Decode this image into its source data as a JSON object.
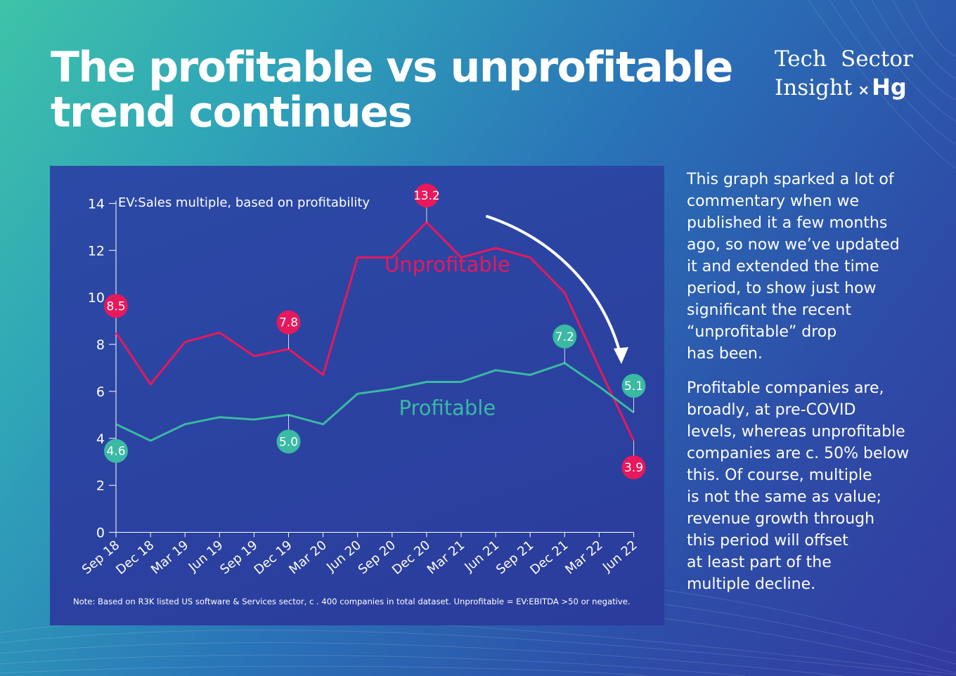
{
  "headline": {
    "line1": "The profitable vs unprofitable",
    "line2": "trend continues"
  },
  "brand": {
    "word1": "Tech",
    "word2": "Sector",
    "word3": "Insight",
    "mark": "×",
    "logo": "Hg"
  },
  "chart_data": {
    "type": "line",
    "title": "EV:Sales multiple, based on profitability",
    "xlabel": "",
    "ylabel": "",
    "ylim": [
      0,
      14
    ],
    "yticks": [
      0,
      2,
      4,
      6,
      8,
      10,
      12,
      14
    ],
    "categories": [
      "Sep 18",
      "Dec 18",
      "Mar 19",
      "Jun 19",
      "Sep 19",
      "Dec 19",
      "Mar 20",
      "Jun 20",
      "Sep 20",
      "Dec 20",
      "Mar 21",
      "Jun 21",
      "Sep 21",
      "Dec 21",
      "Mar 22",
      "Jun 22"
    ],
    "series": [
      {
        "name": "Unprofitable",
        "color": "#e8185c",
        "values": [
          8.5,
          6.3,
          8.1,
          8.5,
          7.5,
          7.8,
          6.7,
          11.7,
          11.7,
          13.2,
          11.7,
          12.1,
          11.7,
          10.2,
          7.0,
          3.9
        ],
        "labels": [
          {
            "index": 0,
            "text": "8.5"
          },
          {
            "index": 5,
            "text": "7.8"
          },
          {
            "index": 9,
            "text": "13.2"
          },
          {
            "index": 15,
            "text": "3.9"
          }
        ]
      },
      {
        "name": "Profitable",
        "color": "#3ab9a3",
        "values": [
          4.6,
          3.9,
          4.6,
          4.9,
          4.8,
          5.0,
          4.6,
          5.9,
          6.1,
          6.4,
          6.4,
          6.9,
          6.7,
          7.2,
          6.2,
          5.1
        ],
        "labels": [
          {
            "index": 0,
            "text": "4.6"
          },
          {
            "index": 5,
            "text": "5.0"
          },
          {
            "index": 13,
            "text": "7.2"
          },
          {
            "index": 15,
            "text": "5.1"
          }
        ]
      }
    ],
    "note": "Note: Based on R3K listed US software & Services sector, c . 400 companies in total dataset. Unprofitable = EV:EBITDA >50 or negative."
  },
  "commentary": {
    "p1": [
      "This graph sparked a lot of",
      "commentary when we",
      "published it a few months",
      "ago, so now we’ve updated",
      "it and extended the time",
      "period, to show just how",
      "significant the recent",
      "“unprofitable” drop",
      "has been."
    ],
    "p2": [
      "Profitable companies are,",
      "broadly, at pre-COVID",
      "levels, whereas unprofitable",
      "companies are c. 50% below",
      "this. Of course, multiple",
      "is not the same as value;",
      "revenue growth through",
      "this period will offset",
      "at least part of the",
      "multiple decline."
    ]
  }
}
